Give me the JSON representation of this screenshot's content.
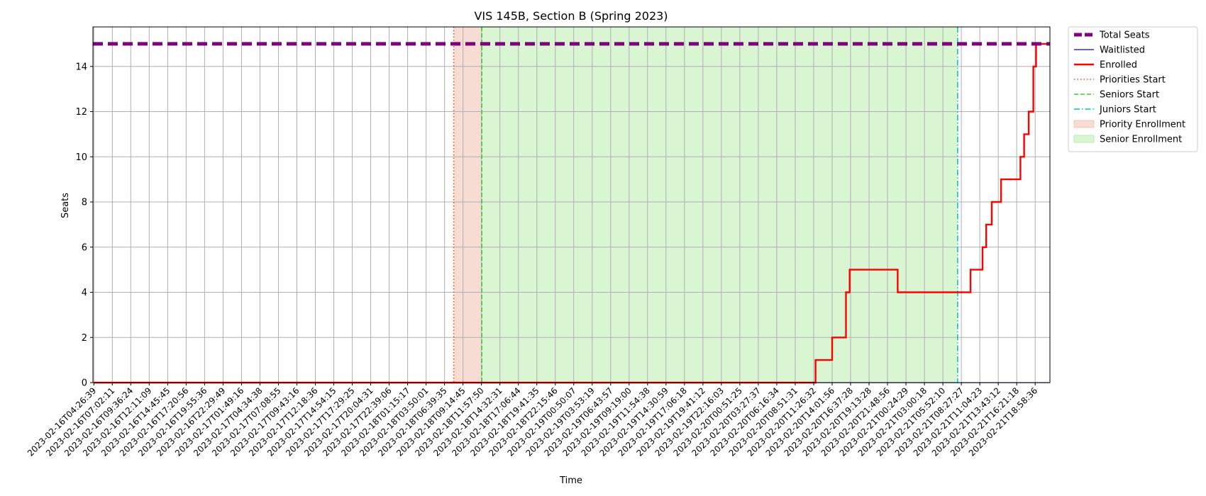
{
  "chart_data": {
    "type": "line",
    "title": "VIS 145B, Section B (Spring 2023)",
    "xlabel": "Time",
    "ylabel": "Seats",
    "ylim": [
      0,
      15.75
    ],
    "y_ticks": [
      0,
      2,
      4,
      6,
      8,
      10,
      12,
      14
    ],
    "x_tick_labels": [
      "2023-02-16T04:26:39",
      "2023-02-16T07:02:11",
      "2023-02-16T09:36:24",
      "2023-02-16T12:11:09",
      "2023-02-16T14:45:45",
      "2023-02-16T17:20:56",
      "2023-02-16T19:55:36",
      "2023-02-16T22:29:49",
      "2023-02-17T01:49:16",
      "2023-02-17T04:34:38",
      "2023-02-17T07:08:55",
      "2023-02-17T09:43:16",
      "2023-02-17T12:18:36",
      "2023-02-17T14:54:15",
      "2023-02-17T17:29:25",
      "2023-02-17T20:04:31",
      "2023-02-17T22:39:06",
      "2023-02-18T01:15:17",
      "2023-02-18T03:50:01",
      "2023-02-18T06:39:35",
      "2023-02-18T09:14:45",
      "2023-02-18T11:57:50",
      "2023-02-18T14:32:31",
      "2023-02-18T17:06:44",
      "2023-02-18T19:41:35",
      "2023-02-18T22:15:46",
      "2023-02-19T00:50:07",
      "2023-02-19T03:53:19",
      "2023-02-19T06:43:57",
      "2023-02-19T09:19:00",
      "2023-02-19T11:54:38",
      "2023-02-19T14:30:59",
      "2023-02-19T17:06:18",
      "2023-02-19T19:41:12",
      "2023-02-19T22:16:03",
      "2023-02-20T00:51:25",
      "2023-02-20T03:27:37",
      "2023-02-20T06:16:34",
      "2023-02-20T08:51:31",
      "2023-02-20T11:26:32",
      "2023-02-20T14:01:56",
      "2023-02-20T16:37:28",
      "2023-02-20T19:13:28",
      "2023-02-20T21:48:56",
      "2023-02-21T00:24:29",
      "2023-02-21T03:00:18",
      "2023-02-21T05:52:10",
      "2023-02-21T08:27:27",
      "2023-02-21T11:04:23",
      "2023-02-21T13:43:12",
      "2023-02-21T16:21:18",
      "2023-02-21T18:58:36"
    ],
    "x_range_ticks": [
      -0.05,
      51.8
    ],
    "total_seats": 15,
    "enrolled_steps": [
      [
        0,
        0
      ],
      [
        39.1,
        0
      ],
      [
        39.1,
        1
      ],
      [
        40.0,
        1
      ],
      [
        40.0,
        2
      ],
      [
        40.75,
        2
      ],
      [
        40.75,
        4
      ],
      [
        40.95,
        4
      ],
      [
        40.95,
        5
      ],
      [
        43.55,
        5
      ],
      [
        43.55,
        4
      ],
      [
        47.5,
        4
      ],
      [
        47.5,
        5
      ],
      [
        48.15,
        5
      ],
      [
        48.15,
        6
      ],
      [
        48.35,
        6
      ],
      [
        48.35,
        7
      ],
      [
        48.65,
        7
      ],
      [
        48.65,
        8
      ],
      [
        49.15,
        8
      ],
      [
        49.15,
        9
      ],
      [
        50.2,
        9
      ],
      [
        50.2,
        10
      ],
      [
        50.4,
        10
      ],
      [
        50.4,
        11
      ],
      [
        50.65,
        11
      ],
      [
        50.65,
        12
      ],
      [
        50.9,
        12
      ],
      [
        50.9,
        14
      ],
      [
        51.05,
        14
      ],
      [
        51.05,
        15
      ],
      [
        51.75,
        15
      ]
    ],
    "waitlisted_steps": [
      [
        0,
        0
      ],
      [
        51.75,
        0
      ]
    ],
    "priorities_start_x": 19.5,
    "seniors_start_x": 21.02,
    "juniors_start_x": 46.8,
    "priority_span": [
      19.5,
      21.02
    ],
    "senior_span": [
      21.02,
      46.8
    ],
    "legend_position": "outside-top-right",
    "grid": true,
    "colors": {
      "total_seats": "#800080",
      "waitlisted": "#0000ff",
      "enrolled": "#ff0000",
      "priorities_start": "#ff4500",
      "seniors_start": "#32cd32",
      "juniors_start": "#00bfc4",
      "priority_fill": "#f6dcd2",
      "senior_fill": "#d9f5d2"
    },
    "legend": [
      {
        "key": "total_seats",
        "label": "Total Seats"
      },
      {
        "key": "waitlisted",
        "label": "Waitlisted"
      },
      {
        "key": "enrolled",
        "label": "Enrolled"
      },
      {
        "key": "priorities_start",
        "label": "Priorities Start"
      },
      {
        "key": "seniors_start",
        "label": "Seniors Start"
      },
      {
        "key": "juniors_start",
        "label": "Juniors Start"
      },
      {
        "key": "priority_fill",
        "label": "Priority Enrollment"
      },
      {
        "key": "senior_fill",
        "label": "Senior Enrollment"
      }
    ]
  }
}
